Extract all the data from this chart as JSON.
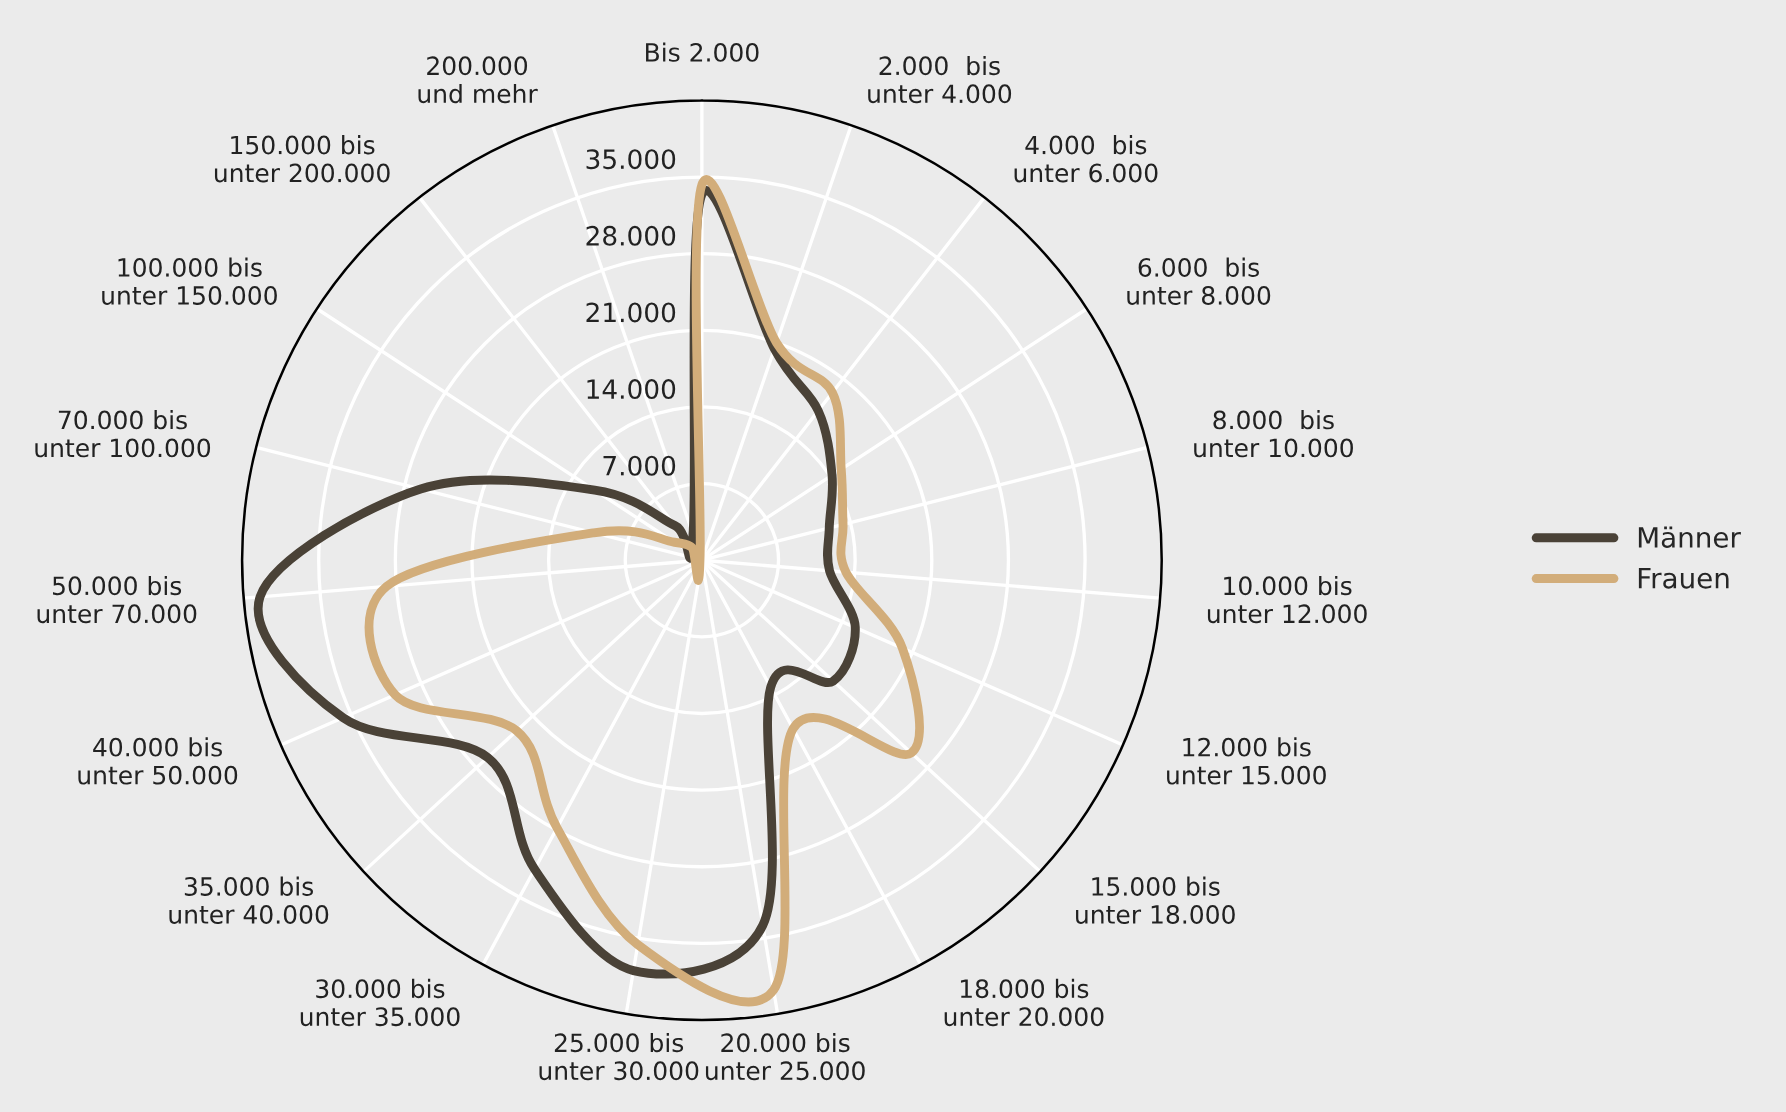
{
  "chart_data": {
    "type": "radar",
    "categories": [
      "Bis 2.000",
      "2.000  bis\nunter 4.000",
      "4.000  bis\nunter 6.000",
      "6.000  bis\nunter 8.000",
      "8.000  bis\nunter 10.000",
      "10.000 bis\nunter 12.000",
      "12.000 bis\nunter 15.000",
      "15.000 bis\nunter 18.000",
      "18.000 bis\nunter 20.000",
      "20.000 bis\nunter 25.000",
      "25.000 bis\nunter 30.000",
      "30.000 bis\nunter 35.000",
      "35.000 bis\nunter 40.000",
      "40.000 bis\nunter 50.000",
      "50.000 bis\nunter 70.000",
      "70.000 bis\nunter 100.000",
      "100.000 bis\nunter 150.000",
      "150.000 bis\nunter 200.000",
      "200.000\nund mehr"
    ],
    "series": [
      {
        "name": "Männer",
        "color": "#4a4237",
        "values": [
          33400,
          20400,
          17300,
          14200,
          12000,
          11700,
          15300,
          16300,
          13200,
          33800,
          38000,
          32100,
          26600,
          35800,
          40500,
          26500,
          11700,
          4000,
          2500
        ]
      },
      {
        "name": "Frauen",
        "color": "#d2ad7a",
        "values": [
          34300,
          21000,
          19400,
          15200,
          13300,
          13200,
          20000,
          26000,
          17500,
          39800,
          35600,
          27800,
          23000,
          30600,
          28900,
          10200,
          3000,
          1500,
          500
        ]
      }
    ],
    "ylim": [
      0,
      42000
    ],
    "yticks": [
      {
        "value": 7000,
        "label": "7.000"
      },
      {
        "value": 14000,
        "label": "14.000"
      },
      {
        "value": 21000,
        "label": "21.000"
      },
      {
        "value": 28000,
        "label": "28.000"
      },
      {
        "value": 35000,
        "label": "35.000"
      }
    ],
    "grid": true,
    "legend": "right",
    "line_style": "solid",
    "marker": "none"
  }
}
